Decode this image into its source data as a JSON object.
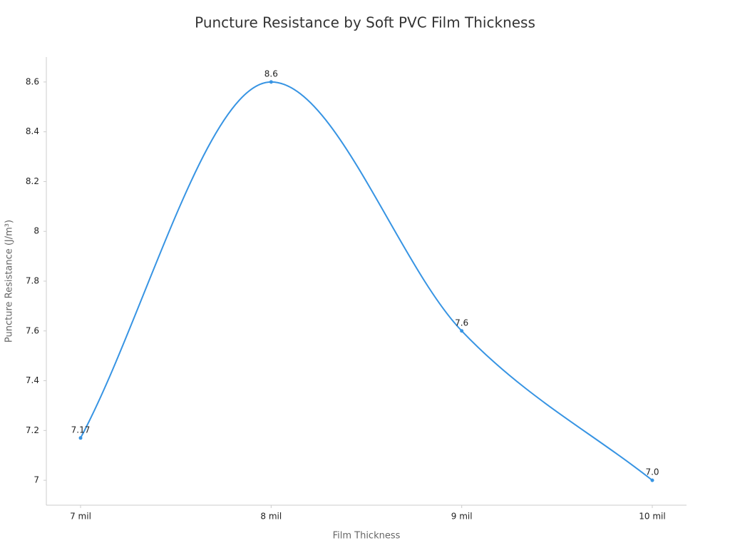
{
  "chart_data": {
    "type": "line",
    "title": "Puncture Resistance by Soft PVC Film Thickness",
    "x_label": "Film Thickness",
    "y_label": "Puncture Resistance (J/m³)",
    "categories": [
      "7 mil",
      "8 mil",
      "9 mil",
      "10 mil"
    ],
    "series": [
      {
        "name": "Puncture Resistance",
        "color": "#3794e3",
        "values": [
          7.17,
          8.6,
          7.6,
          7.0
        ],
        "value_labels": [
          "7.17",
          "8.6",
          "7.6",
          "7.0"
        ]
      }
    ],
    "ylim": [
      6.9,
      8.7
    ],
    "yticks": [
      7,
      7.2,
      7.4,
      7.6,
      7.8,
      8,
      8.2,
      8.4,
      8.6
    ],
    "grid": false,
    "smooth": true
  }
}
